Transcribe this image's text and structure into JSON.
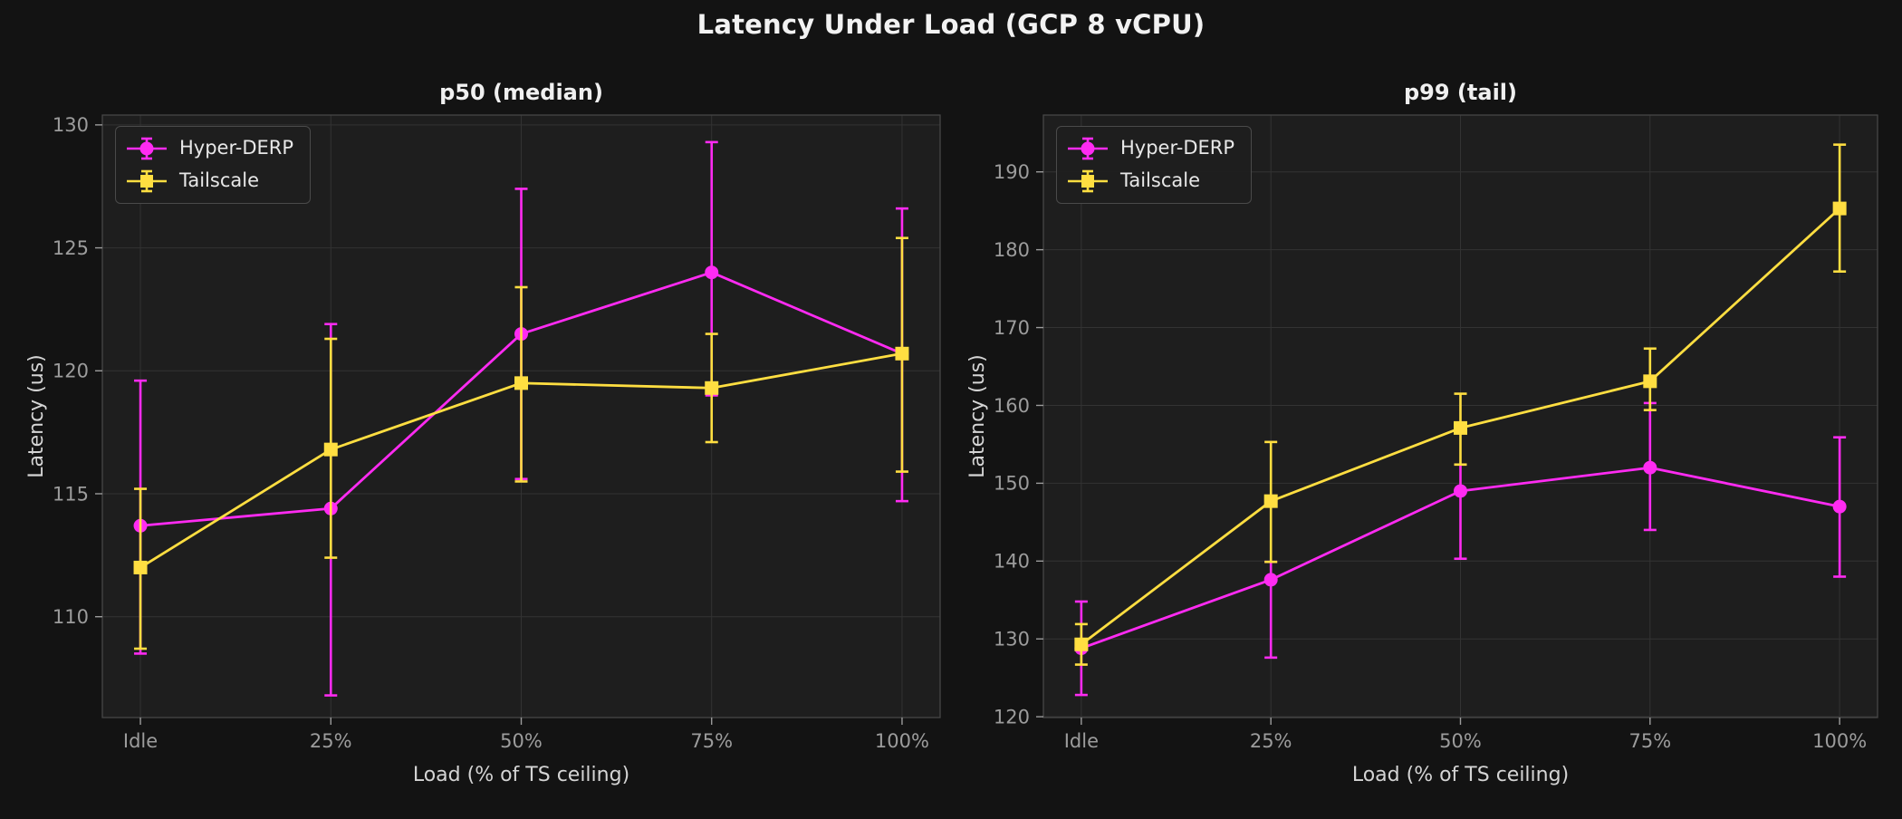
{
  "title": "Latency Under Load (GCP 8 vCPU)",
  "colors": {
    "hyper_derp": "#ff2bf2",
    "tailscale": "#ffde41",
    "background": "#131313",
    "axes_background": "#1e1e1e",
    "grid": "#333333",
    "spine": "#464646",
    "tick_text": "#9c9c9c",
    "label_text": "#d4d4d4",
    "title_text": "#f0f0f0"
  },
  "chart_data": [
    {
      "type": "line",
      "title": "p50 (median)",
      "xlabel": "Load (% of TS ceiling)",
      "ylabel": "Latency (us)",
      "categories": [
        "Idle",
        "25%",
        "50%",
        "75%",
        "100%"
      ],
      "ylim": [
        105.9,
        130.4
      ],
      "yticks": [
        110,
        115,
        120,
        125,
        130
      ],
      "grid": true,
      "legend_position": "upper left",
      "series": [
        {
          "name": "Hyper-DERP",
          "marker": "circle",
          "color_key": "hyper_derp",
          "values": [
            113.7,
            114.4,
            121.5,
            124.0,
            120.7
          ],
          "err_lo": [
            108.5,
            106.8,
            115.6,
            119.0,
            114.7
          ],
          "err_hi": [
            119.6,
            121.9,
            127.4,
            129.3,
            126.6
          ]
        },
        {
          "name": "Tailscale",
          "marker": "square",
          "color_key": "tailscale",
          "values": [
            112.0,
            116.8,
            119.5,
            119.3,
            120.7
          ],
          "err_lo": [
            108.7,
            112.4,
            115.5,
            117.1,
            115.9
          ],
          "err_hi": [
            115.2,
            121.3,
            123.4,
            121.5,
            125.4
          ]
        }
      ]
    },
    {
      "type": "line",
      "title": "p99 (tail)",
      "xlabel": "Load (% of TS ceiling)",
      "ylabel": "Latency (us)",
      "categories": [
        "Idle",
        "25%",
        "50%",
        "75%",
        "100%"
      ],
      "ylim": [
        119.9,
        197.3
      ],
      "yticks": [
        120,
        130,
        140,
        150,
        160,
        170,
        180,
        190
      ],
      "grid": true,
      "legend_position": "upper left",
      "series": [
        {
          "name": "Hyper-DERP",
          "marker": "circle",
          "color_key": "hyper_derp",
          "values": [
            128.8,
            137.6,
            149.0,
            152.0,
            147.0
          ],
          "err_lo": [
            122.8,
            127.6,
            140.3,
            144.0,
            138.0
          ],
          "err_hi": [
            134.8,
            139.9,
            152.4,
            160.3,
            155.9
          ]
        },
        {
          "name": "Tailscale",
          "marker": "square",
          "color_key": "tailscale",
          "values": [
            129.3,
            147.7,
            157.1,
            163.1,
            185.3
          ],
          "err_lo": [
            126.7,
            139.9,
            152.4,
            159.4,
            177.2
          ],
          "err_hi": [
            131.9,
            155.3,
            161.5,
            167.3,
            193.5
          ]
        }
      ]
    }
  ]
}
